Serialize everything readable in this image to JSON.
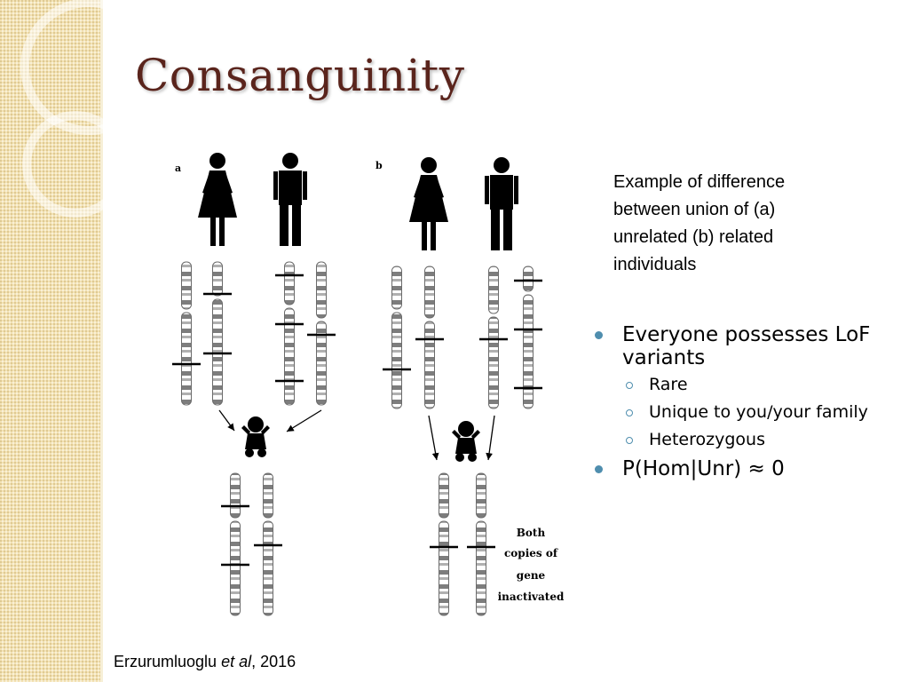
{
  "slide": {
    "title": "Consanguinity",
    "figure": {
      "panel_a_label": "a",
      "panel_b_label": "b",
      "annotation_lines": [
        "Both",
        "copies of",
        "gene",
        "inactivated"
      ]
    },
    "caption_lines": [
      "Example of difference",
      "between union of (a)",
      "unrelated (b) related",
      "individuals"
    ],
    "bullets": [
      {
        "text": "Everyone possesses LoF variants",
        "level": 1
      },
      {
        "text": "Rare",
        "level": 2
      },
      {
        "text": "Unique to you/your family",
        "level": 2
      },
      {
        "text": "Heterozygous",
        "level": 2
      },
      {
        "text": "P(Hom|Unr) ≈ 0",
        "level": 1
      }
    ],
    "citation": {
      "author": "Erzurumluoglu",
      "etal": "et al",
      "year": ", 2016"
    },
    "colors": {
      "title": "#5a241c",
      "bullet": "#4f8eae",
      "side_panel": "#f3e2b4"
    }
  }
}
